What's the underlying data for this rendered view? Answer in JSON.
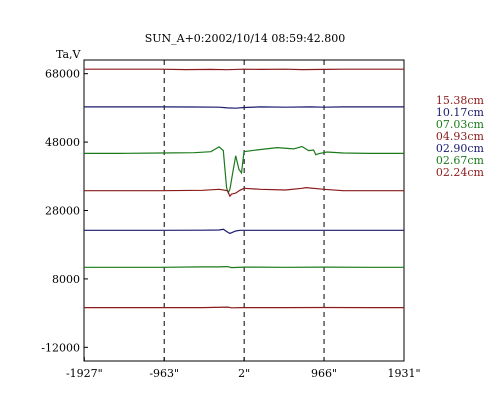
{
  "chart_data": {
    "type": "line",
    "title": "SUN_A+0:2002/10/14 08:59:42.800",
    "ylabel": "Ta,V",
    "xlabel": "",
    "xlim": [
      -1931,
      1931
    ],
    "ylim": [
      -16000,
      72000
    ],
    "grid": false,
    "legend_placement": "right",
    "y_ticks": [
      68000,
      48000,
      28000,
      8000,
      -12000
    ],
    "y_tick_labels": [
      "68000",
      "48000",
      "28000",
      "8000",
      "-12000"
    ],
    "x_ticks": [
      -1927,
      -963,
      2,
      966,
      1931
    ],
    "x_tick_labels": [
      "-1927\"",
      "-963\"",
      "2\"",
      "966\"",
      "1931\""
    ],
    "vlines": [
      -963,
      2,
      966
    ],
    "series": [
      {
        "name": "15.38cm",
        "color": "#8b1a1a",
        "x": [
          -1931,
          -1500,
          -1000,
          -700,
          -400,
          -200,
          0,
          200,
          500,
          700,
          966,
          1200,
          1500,
          1931
        ],
        "y": [
          69300,
          69300,
          69300,
          69200,
          69250,
          69150,
          69300,
          69250,
          69300,
          69200,
          69250,
          69300,
          69300,
          69300
        ]
      },
      {
        "name": "10.17cm",
        "color": "#1a1a6e",
        "x": [
          -1931,
          -1500,
          -1000,
          -600,
          -300,
          -200,
          -100,
          0,
          200,
          500,
          800,
          966,
          1200,
          1500,
          1931
        ],
        "y": [
          58300,
          58300,
          58300,
          58250,
          58200,
          58000,
          57900,
          58100,
          58300,
          58200,
          58300,
          58200,
          58300,
          58300,
          58300
        ]
      },
      {
        "name": "07.03cm",
        "color": "#1a7a1a",
        "x": [
          -1931,
          -1500,
          -1000,
          -600,
          -400,
          -300,
          -250,
          -210,
          -190,
          -170,
          -130,
          -100,
          -60,
          -30,
          0,
          150,
          400,
          600,
          700,
          780,
          840,
          866,
          900,
          1000,
          1200,
          1500,
          1931
        ],
        "y": [
          44700,
          44700,
          44800,
          44900,
          45200,
          46600,
          45500,
          34600,
          33200,
          34200,
          39800,
          44000,
          40000,
          39000,
          45200,
          45700,
          46400,
          46000,
          46700,
          45500,
          45700,
          44300,
          44600,
          45100,
          44800,
          44700,
          44700
        ]
      },
      {
        "name": "04.93cm",
        "color": "#8b1a1a",
        "x": [
          -1931,
          -1500,
          -1000,
          -500,
          -300,
          -200,
          -170,
          -150,
          -100,
          -50,
          0,
          200,
          500,
          700,
          750,
          966,
          1200,
          1500,
          1931
        ],
        "y": [
          33800,
          33800,
          33800,
          33900,
          34200,
          33800,
          32200,
          32800,
          33100,
          33900,
          34500,
          34200,
          34000,
          34500,
          34700,
          34200,
          33800,
          33800,
          33800
        ]
      },
      {
        "name": "02.90cm",
        "color": "#1a1a6e",
        "x": [
          -1931,
          -1500,
          -1000,
          -500,
          -300,
          -250,
          -200,
          -170,
          -100,
          -50,
          0,
          500,
          966,
          1500,
          1931
        ],
        "y": [
          22200,
          22200,
          22200,
          22250,
          22300,
          22500,
          21700,
          21300,
          22000,
          22200,
          22200,
          22200,
          22200,
          22200,
          22200
        ]
      },
      {
        "name": "02.67cm",
        "color": "#1a7a1a",
        "x": [
          -1931,
          -1500,
          -1000,
          -500,
          -300,
          -200,
          -150,
          0,
          500,
          966,
          1500,
          1931
        ],
        "y": [
          11400,
          11400,
          11400,
          11500,
          11500,
          11600,
          11300,
          11450,
          11400,
          11450,
          11400,
          11400
        ]
      },
      {
        "name": "02.24cm",
        "color": "#8b1a1a",
        "x": [
          -1931,
          -1500,
          -1000,
          -500,
          -200,
          -150,
          0,
          500,
          966,
          1500,
          1931
        ],
        "y": [
          -400,
          -400,
          -400,
          -400,
          -250,
          -450,
          -400,
          -400,
          -350,
          -400,
          -400
        ]
      }
    ]
  }
}
